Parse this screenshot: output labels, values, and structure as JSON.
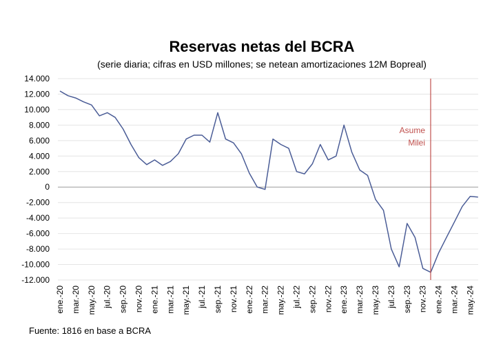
{
  "chart_data": {
    "type": "line",
    "title": "Reservas netas del BCRA",
    "subtitle": "(serie diaria; cifras en USD millones; se netean amortizaciones 12M Bopreal)",
    "source": "Fuente: 1816 en base a BCRA",
    "annotation": [
      "Asume",
      "Milei"
    ],
    "annotation_color": "#c0504d",
    "categories": [
      "ene.-20",
      null,
      "mar.-20",
      null,
      "may.-20",
      null,
      "jul.-20",
      null,
      "sep.-20",
      null,
      "nov.-20",
      null,
      "ene.-21",
      null,
      "mar.-21",
      null,
      "may.-21",
      null,
      "jul.-21",
      null,
      "sep.-21",
      null,
      "nov.-21",
      null,
      "ene.-22",
      null,
      "mar.-22",
      null,
      "may.-22",
      null,
      "jul.-22",
      null,
      "sep.-22",
      null,
      "nov.-22",
      null,
      "ene.-23",
      null,
      "mar.-23",
      null,
      "may.-23",
      null,
      "jul.-23",
      null,
      "sep.-23",
      null,
      "nov.-23",
      null,
      "ene.-24",
      null,
      "mar.-24",
      null,
      "may.-24",
      null
    ],
    "series": [
      {
        "name": "Reservas netas",
        "color": "#4a5c96",
        "values": [
          12400,
          11800,
          11500,
          11000,
          10600,
          9200,
          9600,
          9000,
          7500,
          5500,
          3800,
          2900,
          3500,
          2800,
          3300,
          4300,
          6200,
          6700,
          6700,
          5800,
          9600,
          6200,
          5700,
          4300,
          1800,
          0,
          -300,
          6200,
          5500,
          5000,
          2000,
          1700,
          3000,
          5500,
          3500,
          4000,
          8000,
          4500,
          2200,
          1500,
          -1600,
          -3000,
          -8000,
          -10300,
          -4700,
          -6500,
          -10500,
          -11000,
          -8500,
          -6500,
          -4500,
          -2500,
          -1200,
          -1300
        ]
      }
    ],
    "ylim": [
      -12000,
      14000
    ],
    "yticks": [
      {
        "value": -12000,
        "label": "-12.000"
      },
      {
        "value": -10000,
        "label": "-10.000"
      },
      {
        "value": -8000,
        "label": "-8.000"
      },
      {
        "value": -6000,
        "label": "-6.000"
      },
      {
        "value": -4000,
        "label": "-4.000"
      },
      {
        "value": -2000,
        "label": "-2.000"
      },
      0,
      {
        "value": 2000,
        "label": "2.000"
      },
      {
        "value": 4000,
        "label": "4.000"
      },
      {
        "value": 6000,
        "label": "6.000"
      },
      {
        "value": 8000,
        "label": "8.000"
      },
      {
        "value": 10000,
        "label": "10.000"
      },
      {
        "value": 12000,
        "label": "12.000"
      },
      {
        "value": 14000,
        "label": "14.000"
      }
    ],
    "grid": true
  }
}
